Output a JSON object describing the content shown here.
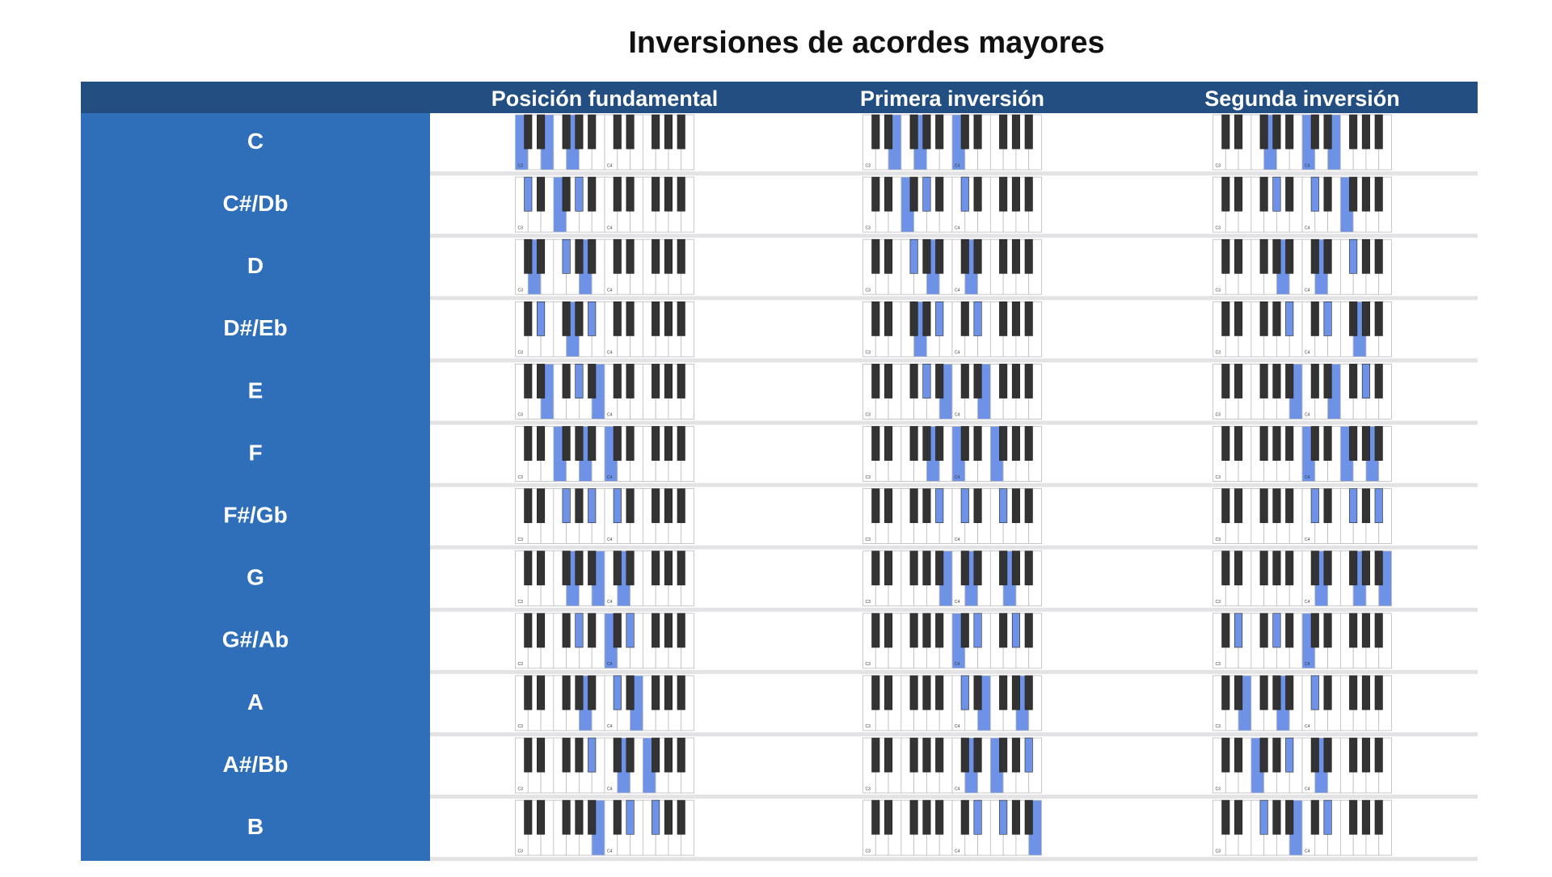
{
  "header": {
    "title": "Inversiones de acordes mayores"
  },
  "table": {
    "columns": [
      "Posición fundamental",
      "Primera inversión",
      "Segunda inversión"
    ],
    "keyboard_labels": [
      "C3",
      "C4"
    ],
    "rows": [
      {
        "label": "C",
        "cells": [
          [
            0,
            4,
            7
          ],
          [
            4,
            7,
            12
          ],
          [
            7,
            12,
            16
          ]
        ]
      },
      {
        "label": "C#/Db",
        "cells": [
          [
            1,
            5,
            8
          ],
          [
            5,
            8,
            13
          ],
          [
            8,
            13,
            17
          ]
        ]
      },
      {
        "label": "D",
        "cells": [
          [
            2,
            6,
            9
          ],
          [
            6,
            9,
            14
          ],
          [
            9,
            14,
            18
          ]
        ]
      },
      {
        "label": "D#/Eb",
        "cells": [
          [
            3,
            7,
            10
          ],
          [
            7,
            10,
            15
          ],
          [
            10,
            15,
            19
          ]
        ]
      },
      {
        "label": "E",
        "cells": [
          [
            4,
            8,
            11
          ],
          [
            8,
            11,
            16
          ],
          [
            11,
            16,
            20
          ]
        ]
      },
      {
        "label": "F",
        "cells": [
          [
            5,
            9,
            12
          ],
          [
            9,
            12,
            17
          ],
          [
            12,
            17,
            21
          ]
        ]
      },
      {
        "label": "F#/Gb",
        "cells": [
          [
            6,
            10,
            13
          ],
          [
            10,
            13,
            18
          ],
          [
            13,
            18,
            22
          ]
        ]
      },
      {
        "label": "G",
        "cells": [
          [
            7,
            11,
            14
          ],
          [
            11,
            14,
            19
          ],
          [
            14,
            19,
            23
          ]
        ]
      },
      {
        "label": "G#/Ab",
        "cells": [
          [
            8,
            12,
            15
          ],
          [
            12,
            15,
            20
          ],
          [
            3,
            8,
            12
          ]
        ]
      },
      {
        "label": "A",
        "cells": [
          [
            9,
            13,
            16
          ],
          [
            13,
            16,
            21
          ],
          [
            4,
            9,
            13
          ]
        ]
      },
      {
        "label": "A#/Bb",
        "cells": [
          [
            10,
            14,
            17
          ],
          [
            14,
            17,
            22
          ],
          [
            5,
            10,
            14
          ]
        ]
      },
      {
        "label": "B",
        "cells": [
          [
            11,
            15,
            18
          ],
          [
            15,
            18,
            23
          ],
          [
            6,
            11,
            15
          ]
        ]
      }
    ]
  }
}
